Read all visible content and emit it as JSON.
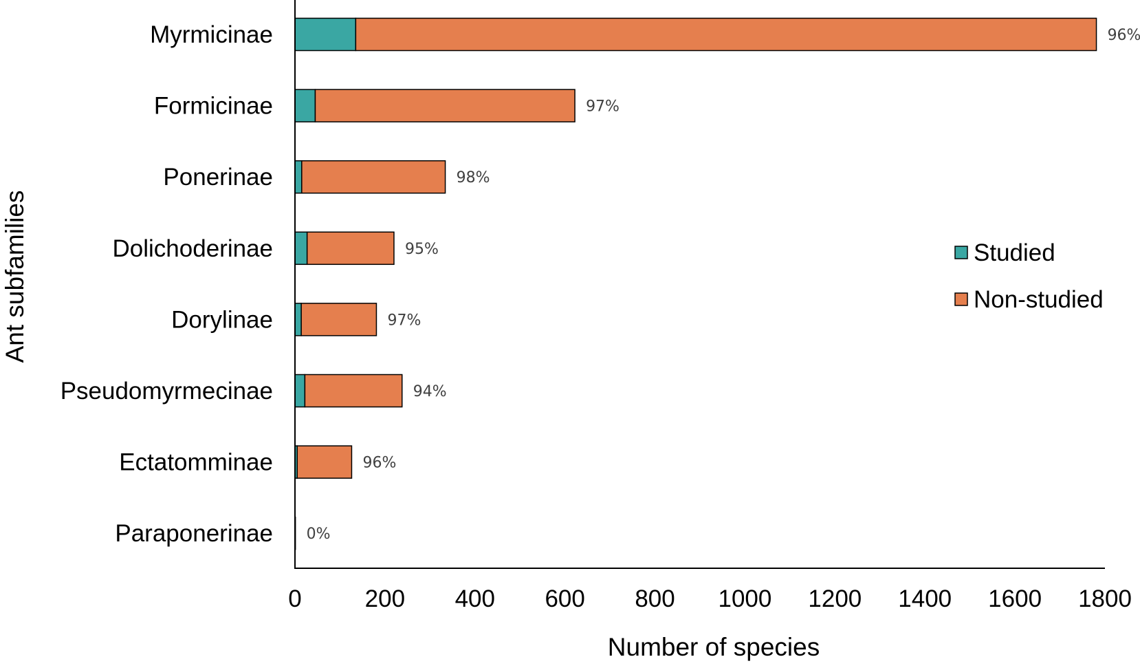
{
  "chart_data": {
    "type": "bar",
    "orientation": "horizontal",
    "stacked": true,
    "categories": [
      "Myrmicinae",
      "Formicinae",
      "Ponerinae",
      "Dolichoderinae",
      "Dorylinae",
      "Pseudomyrmecinae",
      "Ectatomminae",
      "Paraponerinae"
    ],
    "series": [
      {
        "name": "Studied",
        "color": "#3aa7a3",
        "values": [
          135,
          45,
          15,
          27,
          14,
          22,
          5,
          0
        ]
      },
      {
        "name": "Non-studied",
        "color": "#e57f4e",
        "values": [
          1646,
          577,
          319,
          193,
          167,
          216,
          121,
          1
        ]
      }
    ],
    "data_labels": [
      "96%",
      "97%",
      "98%",
      "95%",
      "97%",
      "94%",
      "96%",
      "0%"
    ],
    "xlabel": "Number of species",
    "ylabel": "Ant subfamilies",
    "xlim": [
      0,
      1800
    ],
    "xticks": [
      "0",
      "200",
      "400",
      "600",
      "800",
      "1000",
      "1200",
      "1400",
      "1600",
      "1800"
    ],
    "grid": false,
    "legend_position": "right"
  }
}
